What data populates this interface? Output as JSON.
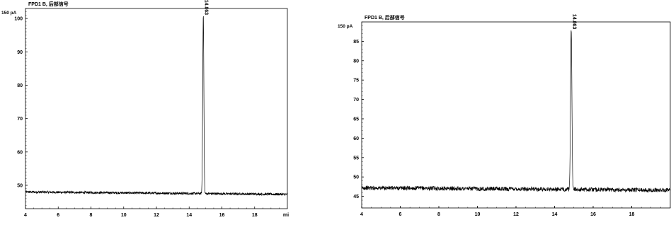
{
  "chart_data": [
    {
      "type": "line",
      "title": "FPD1 B, 后部信号",
      "ylabel": "",
      "xlabel": "",
      "y_unit": "150 pA",
      "x_last_label": "mi",
      "xlim": [
        4,
        20
      ],
      "ylim": [
        43,
        103
      ],
      "x_ticks": [
        4,
        6,
        8,
        10,
        12,
        14,
        16,
        18
      ],
      "y_ticks": [
        100,
        90,
        80,
        70,
        60,
        50
      ],
      "baseline": 48.0,
      "baseline_end": 47.3,
      "noise": 0.35,
      "peaks": [
        {
          "rt": 14.863,
          "height": 101.5,
          "label": "14.863"
        }
      ],
      "series": [
        {
          "values": [
            [
              4,
              48.0
            ],
            [
              10,
              47.8
            ],
            [
              14.7,
              47.5
            ],
            [
              14.8,
              48.5
            ],
            [
              14.863,
              101.5
            ],
            [
              14.95,
              48.0
            ],
            [
              20,
              47.3
            ]
          ]
        }
      ],
      "grid": false,
      "legend": "none"
    },
    {
      "type": "line",
      "title": "FPD1 B, 后部信号",
      "ylabel": "",
      "xlabel": "",
      "y_unit": "150 pA",
      "x_last_label": "",
      "xlim": [
        4,
        20
      ],
      "ylim": [
        42,
        90
      ],
      "x_ticks": [
        4,
        6,
        8,
        10,
        12,
        14,
        16,
        18
      ],
      "y_ticks": [
        85,
        80,
        75,
        70,
        65,
        60,
        55,
        50,
        45
      ],
      "baseline": 47.2,
      "baseline_end": 46.6,
      "noise": 0.55,
      "peaks": [
        {
          "rt": 14.863,
          "height": 88.5,
          "label": "14.863"
        }
      ],
      "series": [
        {
          "values": [
            [
              4,
              47.2
            ],
            [
              10,
              46.9
            ],
            [
              14.7,
              46.8
            ],
            [
              14.8,
              47.5
            ],
            [
              14.863,
              88.5
            ],
            [
              14.95,
              47.0
            ],
            [
              20,
              46.6
            ]
          ]
        }
      ],
      "grid": false,
      "legend": "none"
    }
  ]
}
